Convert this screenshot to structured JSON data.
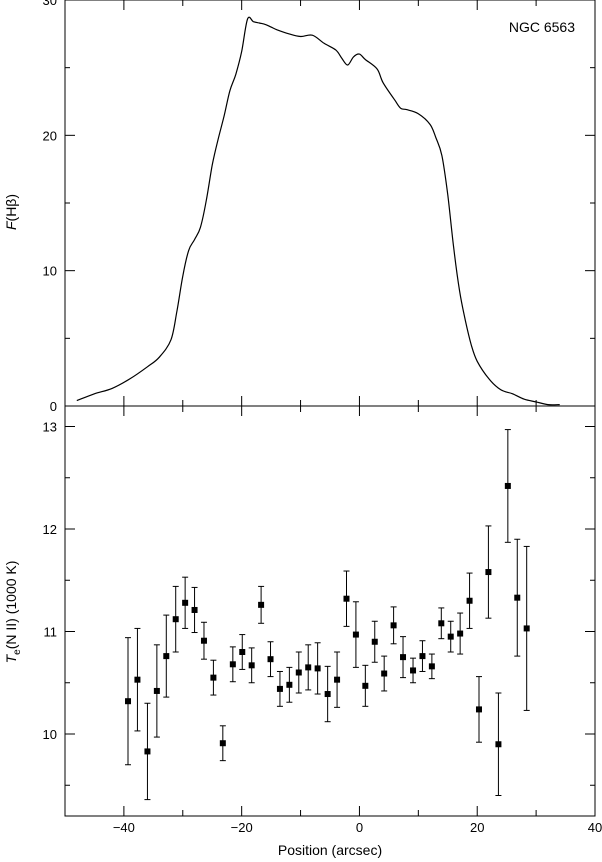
{
  "figure": {
    "annotation": "NGC 6563",
    "xlabel": "Position (arcsec)"
  },
  "chart_data": [
    {
      "type": "line",
      "panel": "top",
      "ylabel_italic": "F",
      "ylabel_rest": "(Hβ)",
      "xlim": [
        -50,
        40
      ],
      "ylim": [
        0,
        30
      ],
      "x_ticks": [
        -40,
        -20,
        0,
        20,
        40
      ],
      "y_ticks": [
        0,
        10,
        20,
        30
      ],
      "series": [
        {
          "x": [
            -48,
            -45,
            -42,
            -39,
            -36,
            -34,
            -32,
            -31,
            -30,
            -29,
            -28,
            -27,
            -26,
            -25,
            -24,
            -23,
            -22,
            -21,
            -20,
            -19,
            -18,
            -17,
            -16,
            -15,
            -14,
            -12,
            -10,
            -8,
            -6,
            -4,
            -3,
            -2,
            -1,
            0,
            1,
            3,
            4,
            6,
            7,
            8,
            10,
            12,
            13,
            14,
            15,
            16,
            17,
            18,
            19,
            20,
            22,
            24,
            26,
            28,
            30,
            32,
            34
          ],
          "y": [
            0.4,
            0.9,
            1.3,
            2.0,
            2.9,
            3.6,
            4.9,
            7.0,
            9.6,
            11.5,
            12.3,
            13.2,
            15.2,
            17.8,
            19.7,
            21.4,
            23.3,
            24.5,
            26.2,
            28.6,
            28.4,
            28.3,
            28.2,
            28.0,
            27.8,
            27.5,
            27.3,
            27.4,
            26.8,
            26.3,
            25.7,
            25.2,
            25.8,
            26.0,
            25.6,
            24.9,
            23.9,
            22.6,
            22.0,
            21.9,
            21.6,
            20.8,
            19.8,
            18.5,
            15.6,
            11.7,
            8.5,
            6.3,
            4.5,
            3.3,
            2.0,
            1.2,
            0.9,
            0.5,
            0.3,
            0.1,
            0.1
          ]
        }
      ]
    },
    {
      "type": "scatter",
      "panel": "bottom",
      "ylabel_italic": "T",
      "ylabel_sub": "e",
      "ylabel_rest": "(N II) (1000 K)",
      "xlim": [
        -50,
        40
      ],
      "ylim": [
        9.2,
        13.2
      ],
      "x_ticks": [
        -40,
        -20,
        0,
        20,
        40
      ],
      "y_ticks": [
        10,
        11,
        12,
        13
      ],
      "error_bars": true,
      "series": [
        {
          "points": [
            {
              "x": -39.3,
              "y": 10.32,
              "err": 0.62
            },
            {
              "x": -37.7,
              "y": 10.53,
              "err": 0.5
            },
            {
              "x": -36.0,
              "y": 9.83,
              "err": 0.47
            },
            {
              "x": -34.4,
              "y": 10.42,
              "err": 0.45
            },
            {
              "x": -32.8,
              "y": 10.76,
              "err": 0.4
            },
            {
              "x": -31.2,
              "y": 11.12,
              "err": 0.32
            },
            {
              "x": -29.6,
              "y": 11.28,
              "err": 0.25
            },
            {
              "x": -28.0,
              "y": 11.21,
              "err": 0.22
            },
            {
              "x": -26.4,
              "y": 10.91,
              "err": 0.18
            },
            {
              "x": -24.8,
              "y": 10.55,
              "err": 0.17
            },
            {
              "x": -23.2,
              "y": 9.91,
              "err": 0.17
            },
            {
              "x": -21.5,
              "y": 10.68,
              "err": 0.17
            },
            {
              "x": -19.9,
              "y": 10.8,
              "err": 0.17
            },
            {
              "x": -18.3,
              "y": 10.67,
              "err": 0.17
            },
            {
              "x": -16.7,
              "y": 11.26,
              "err": 0.18
            },
            {
              "x": -15.1,
              "y": 10.73,
              "err": 0.17
            },
            {
              "x": -13.5,
              "y": 10.44,
              "err": 0.17
            },
            {
              "x": -11.9,
              "y": 10.48,
              "err": 0.17
            },
            {
              "x": -10.3,
              "y": 10.6,
              "err": 0.2
            },
            {
              "x": -8.7,
              "y": 10.65,
              "err": 0.22
            },
            {
              "x": -7.1,
              "y": 10.64,
              "err": 0.25
            },
            {
              "x": -5.4,
              "y": 10.39,
              "err": 0.27
            },
            {
              "x": -3.8,
              "y": 10.53,
              "err": 0.27
            },
            {
              "x": -2.2,
              "y": 11.32,
              "err": 0.27
            },
            {
              "x": -0.6,
              "y": 10.97,
              "err": 0.32
            },
            {
              "x": 1.0,
              "y": 10.47,
              "err": 0.2
            },
            {
              "x": 2.6,
              "y": 10.9,
              "err": 0.2
            },
            {
              "x": 4.2,
              "y": 10.59,
              "err": 0.17
            },
            {
              "x": 5.8,
              "y": 11.06,
              "err": 0.18
            },
            {
              "x": 7.4,
              "y": 10.75,
              "err": 0.2
            },
            {
              "x": 9.1,
              "y": 10.62,
              "err": 0.12
            },
            {
              "x": 10.7,
              "y": 10.76,
              "err": 0.15
            },
            {
              "x": 12.3,
              "y": 10.66,
              "err": 0.12
            },
            {
              "x": 13.9,
              "y": 11.08,
              "err": 0.15
            },
            {
              "x": 15.5,
              "y": 10.95,
              "err": 0.15
            },
            {
              "x": 17.1,
              "y": 10.98,
              "err": 0.2
            },
            {
              "x": 18.7,
              "y": 11.3,
              "err": 0.27
            },
            {
              "x": 20.3,
              "y": 10.24,
              "err": 0.32
            },
            {
              "x": 21.9,
              "y": 11.58,
              "err": 0.45
            },
            {
              "x": 23.6,
              "y": 9.9,
              "err": 0.5
            },
            {
              "x": 25.2,
              "y": 12.42,
              "err": 0.55
            },
            {
              "x": 26.8,
              "y": 11.33,
              "err": 0.57
            },
            {
              "x": 28.4,
              "y": 11.03,
              "err": 0.8
            }
          ]
        }
      ]
    }
  ]
}
